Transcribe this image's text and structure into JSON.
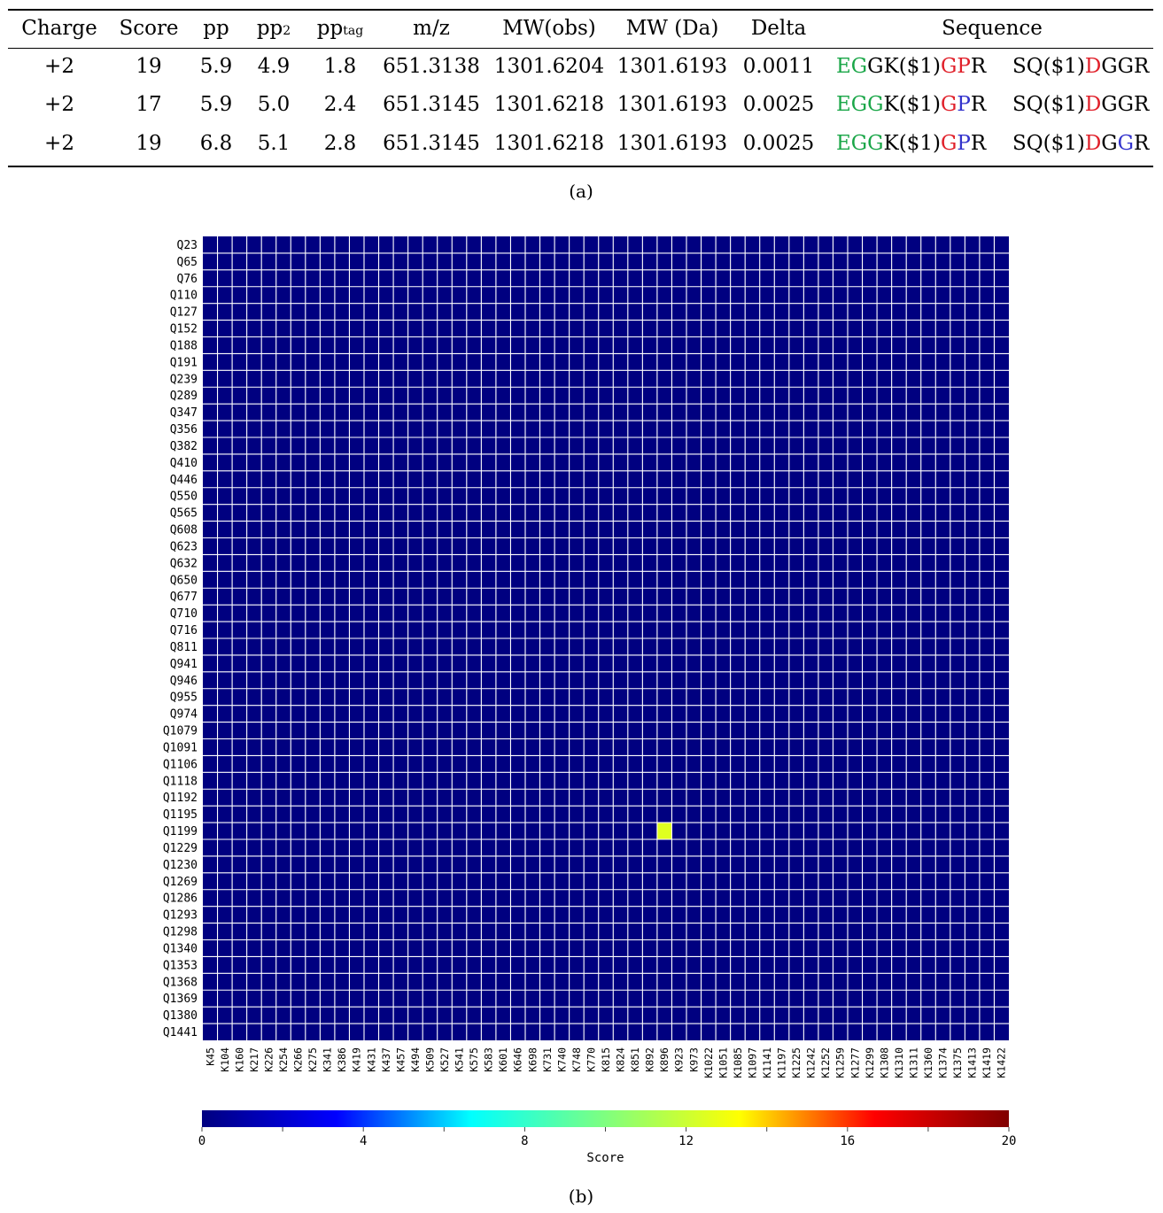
{
  "table": {
    "headers": {
      "charge": "Charge",
      "score": "Score",
      "pp": "pp",
      "pp2_base": "pp",
      "pp2_sub": "2",
      "pptag_base": "pp",
      "pptag_sub": "tag",
      "mz": "m/z",
      "mw_obs": "MW(obs)",
      "mw_da": "MW (Da)",
      "delta": "Delta",
      "sequence": "Sequence"
    },
    "rows": [
      {
        "charge": "+2",
        "score": "19",
        "pp": "5.9",
        "pp2": "4.9",
        "pptag": "1.8",
        "mz": "651.3138",
        "mw_obs": "1301.6204",
        "mw_da": "1301.6193",
        "delta": "0.0011",
        "seq_a": [
          {
            "t": "EG",
            "c": "g"
          },
          {
            "t": "GK($1)",
            "c": "k"
          },
          {
            "t": "G",
            "c": "r"
          },
          {
            "t": "P",
            "c": "r"
          },
          {
            "t": "R",
            "c": "k"
          }
        ],
        "seq_b": [
          {
            "t": "SQ($1)",
            "c": "k"
          },
          {
            "t": "D",
            "c": "r"
          },
          {
            "t": "GGR",
            "c": "k"
          }
        ]
      },
      {
        "charge": "+2",
        "score": "17",
        "pp": "5.9",
        "pp2": "5.0",
        "pptag": "2.4",
        "mz": "651.3145",
        "mw_obs": "1301.6218",
        "mw_da": "1301.6193",
        "delta": "0.0025",
        "seq_a": [
          {
            "t": "EGG",
            "c": "g"
          },
          {
            "t": "K($1)",
            "c": "k"
          },
          {
            "t": "G",
            "c": "r"
          },
          {
            "t": "P",
            "c": "b"
          },
          {
            "t": "R",
            "c": "k"
          }
        ],
        "seq_b": [
          {
            "t": "SQ($1)",
            "c": "k"
          },
          {
            "t": "D",
            "c": "r"
          },
          {
            "t": "GGR",
            "c": "k"
          }
        ]
      },
      {
        "charge": "+2",
        "score": "19",
        "pp": "6.8",
        "pp2": "5.1",
        "pptag": "2.8",
        "mz": "651.3145",
        "mw_obs": "1301.6218",
        "mw_da": "1301.6193",
        "delta": "0.0025",
        "seq_a": [
          {
            "t": "EGG",
            "c": "g"
          },
          {
            "t": "K($1)",
            "c": "k"
          },
          {
            "t": "G",
            "c": "r"
          },
          {
            "t": "P",
            "c": "b"
          },
          {
            "t": "R",
            "c": "k"
          }
        ],
        "seq_b": [
          {
            "t": "SQ($1)",
            "c": "k"
          },
          {
            "t": "D",
            "c": "r"
          },
          {
            "t": "G",
            "c": "k"
          },
          {
            "t": "G",
            "c": "b"
          },
          {
            "t": "R",
            "c": "k"
          }
        ]
      }
    ],
    "caption": "(a)"
  },
  "caption_b": "(b)",
  "chart_data": {
    "type": "heatmap",
    "title": "",
    "rows": [
      "Q23",
      "Q65",
      "Q76",
      "Q110",
      "Q127",
      "Q152",
      "Q188",
      "Q191",
      "Q239",
      "Q289",
      "Q347",
      "Q356",
      "Q382",
      "Q410",
      "Q446",
      "Q550",
      "Q565",
      "Q608",
      "Q623",
      "Q632",
      "Q650",
      "Q677",
      "Q710",
      "Q716",
      "Q811",
      "Q941",
      "Q946",
      "Q955",
      "Q974",
      "Q1079",
      "Q1091",
      "Q1106",
      "Q1118",
      "Q1192",
      "Q1195",
      "Q1199",
      "Q1229",
      "Q1230",
      "Q1269",
      "Q1286",
      "Q1293",
      "Q1298",
      "Q1340",
      "Q1353",
      "Q1368",
      "Q1369",
      "Q1380",
      "Q1441"
    ],
    "columns": [
      "K45",
      "K104",
      "K160",
      "K217",
      "K226",
      "K254",
      "K266",
      "K275",
      "K341",
      "K386",
      "K419",
      "K431",
      "K437",
      "K457",
      "K494",
      "K509",
      "K527",
      "K541",
      "K575",
      "K583",
      "K601",
      "K646",
      "K698",
      "K731",
      "K740",
      "K748",
      "K770",
      "K815",
      "K824",
      "K851",
      "K892",
      "K896",
      "K923",
      "K973",
      "K1022",
      "K1051",
      "K1085",
      "K1097",
      "K1141",
      "K1197",
      "K1225",
      "K1242",
      "K1252",
      "K1259",
      "K1277",
      "K1299",
      "K1308",
      "K1310",
      "K1311",
      "K1360",
      "K1374",
      "K1375",
      "K1413",
      "K1419",
      "K1422"
    ],
    "default_value": 0,
    "nonzero_cells": [
      {
        "row": "Q1199",
        "column": "K896",
        "value": 12.5
      }
    ],
    "colorbar": {
      "label": "Score",
      "min": 0,
      "max": 20,
      "ticks": [
        0,
        4,
        8,
        12,
        16,
        20
      ],
      "colormap": [
        "#000080",
        "#0000ff",
        "#00ffff",
        "#7fff7f",
        "#ffff00",
        "#ff0000",
        "#800000"
      ]
    },
    "grid": true
  }
}
